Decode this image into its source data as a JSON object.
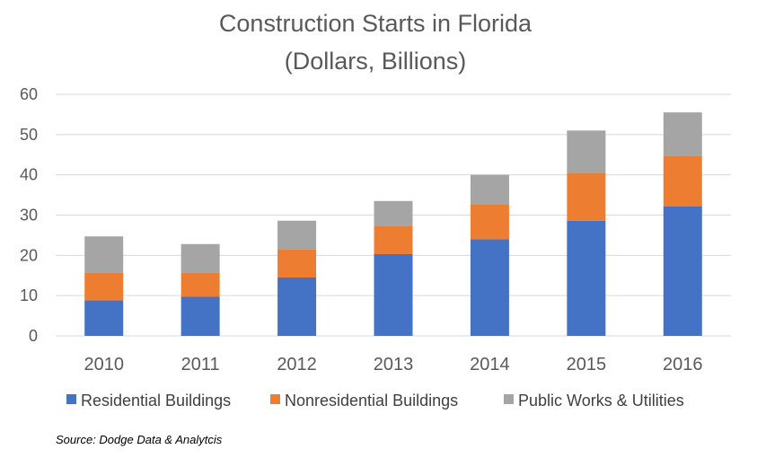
{
  "chart_data": {
    "type": "bar",
    "stacked": true,
    "title": [
      "Construction Starts in Florida",
      "(Dollars, Billions)"
    ],
    "categories": [
      "2010",
      "2011",
      "2012",
      "2013",
      "2014",
      "2015",
      "2016"
    ],
    "series": [
      {
        "name": "Residential Buildings",
        "color": "#4472c4",
        "values": [
          8.8,
          9.7,
          14.5,
          20.3,
          24.0,
          28.6,
          32.2
        ]
      },
      {
        "name": "Nonresidential Buildings",
        "color": "#ed7d31",
        "values": [
          6.9,
          6.0,
          7.0,
          7.0,
          8.7,
          11.9,
          12.5
        ]
      },
      {
        "name": "Public Works & Utilities",
        "color": "#a5a5a5",
        "values": [
          9.0,
          7.1,
          7.1,
          6.2,
          7.3,
          10.5,
          10.8
        ]
      }
    ],
    "ylim": [
      0,
      60
    ],
    "yticks": [
      "0",
      "10",
      "20",
      "30",
      "40",
      "50",
      "60"
    ],
    "grid": true,
    "legend_position": "bottom",
    "source": "Source: Dodge Data & Analytcis"
  }
}
